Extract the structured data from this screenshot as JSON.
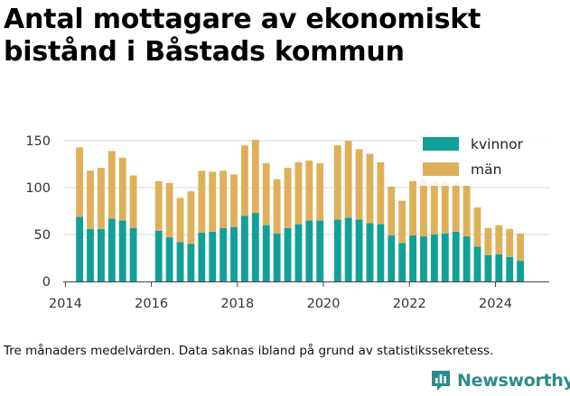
{
  "chart_data": {
    "type": "bar",
    "stacked": true,
    "title": "Antal mottagare av ekonomiskt bistånd i Båstads kommun",
    "xlabel": "",
    "ylabel": "",
    "ylim": [
      0,
      150
    ],
    "yticks": [
      0,
      50,
      100,
      150
    ],
    "xticks": [
      2014,
      2016,
      2018,
      2020,
      2022,
      2024
    ],
    "grid": true,
    "legend_position": "top-right",
    "colors": {
      "kvinnor": "#11a098",
      "män": "#dfb05a"
    },
    "x": [
      2014.33,
      2014.58,
      2014.83,
      2015.08,
      2015.33,
      2015.58,
      2016.17,
      2016.42,
      2016.67,
      2016.92,
      2017.17,
      2017.42,
      2017.67,
      2017.92,
      2018.17,
      2018.42,
      2018.67,
      2018.92,
      2019.17,
      2019.42,
      2019.67,
      2019.92,
      2020.33,
      2020.58,
      2020.83,
      2021.08,
      2021.33,
      2021.58,
      2021.83,
      2022.08,
      2022.33,
      2022.58,
      2022.83,
      2023.08,
      2023.33,
      2023.58,
      2023.83,
      2024.08,
      2024.33,
      2024.58
    ],
    "series": [
      {
        "name": "kvinnor",
        "values": [
          69,
          56,
          56,
          67,
          65,
          57,
          54,
          47,
          42,
          40,
          52,
          53,
          57,
          58,
          70,
          73,
          60,
          51,
          57,
          61,
          65,
          65,
          66,
          68,
          66,
          62,
          61,
          49,
          41,
          49,
          48,
          50,
          51,
          53,
          48,
          37,
          28,
          29,
          26,
          22
        ]
      },
      {
        "name": "män",
        "values": [
          74,
          62,
          65,
          72,
          67,
          56,
          53,
          58,
          47,
          56,
          66,
          64,
          61,
          56,
          75,
          78,
          66,
          58,
          64,
          66,
          64,
          61,
          79,
          82,
          75,
          74,
          66,
          52,
          45,
          58,
          61,
          57,
          56,
          52,
          54,
          42,
          29,
          31,
          30,
          29
        ]
      }
    ]
  },
  "caption": "Tre månaders medelvärden. Data saknas ibland på grund av statistikssekretess.",
  "brand": {
    "name": "Newsworthy",
    "icon": "newsworthy-logo-icon"
  }
}
